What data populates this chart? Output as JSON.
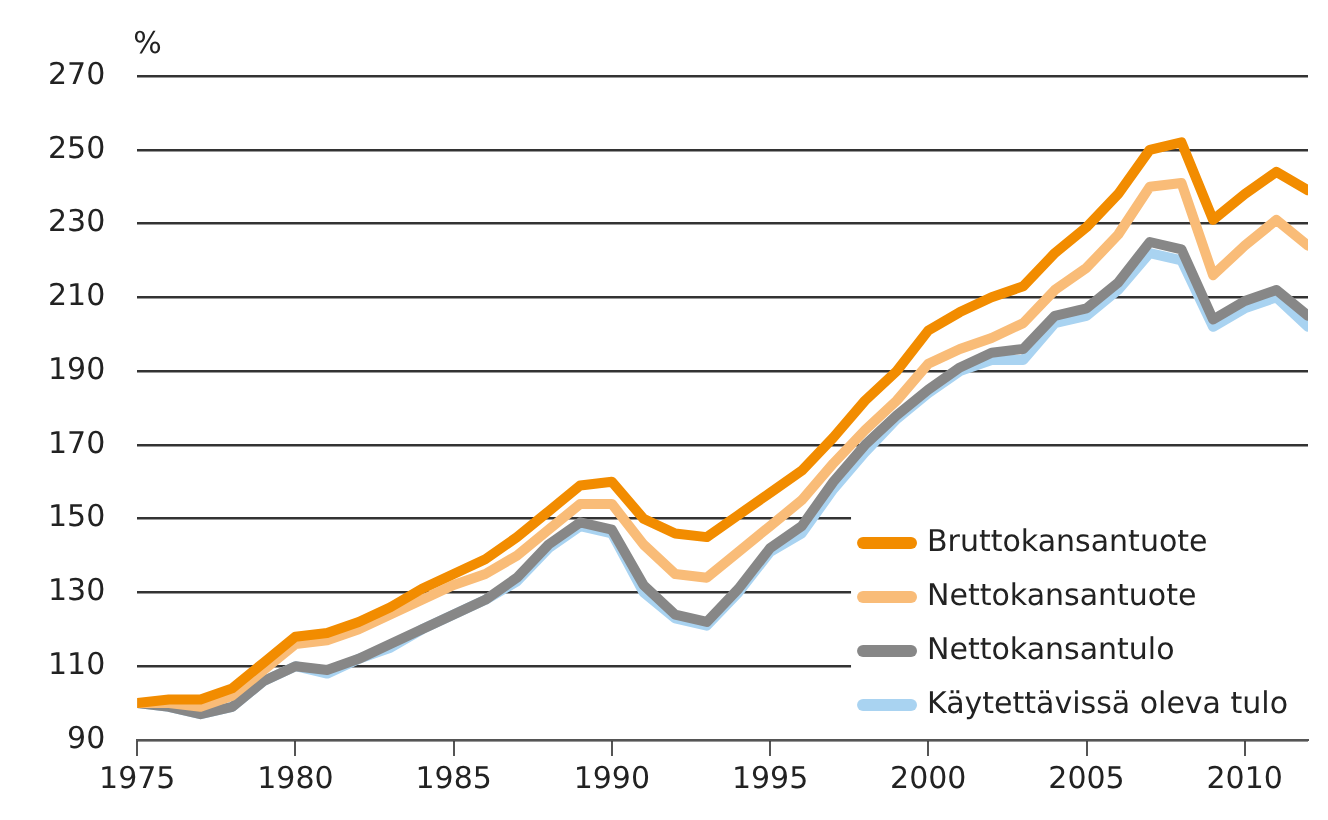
{
  "chart_data": {
    "type": "line",
    "ylabel": "%",
    "x": [
      1975,
      1976,
      1977,
      1978,
      1979,
      1980,
      1981,
      1982,
      1983,
      1984,
      1985,
      1986,
      1987,
      1988,
      1989,
      1990,
      1991,
      1992,
      1993,
      1994,
      1995,
      1996,
      1997,
      1998,
      1999,
      2000,
      2001,
      2002,
      2003,
      2004,
      2005,
      2006,
      2007,
      2008,
      2009,
      2010,
      2011,
      2012
    ],
    "series": [
      {
        "name": "Bruttokansantuote",
        "color": "#f28c00",
        "values": [
          100,
          101,
          101,
          104,
          111,
          118,
          119,
          122,
          126,
          131,
          135,
          139,
          145,
          152,
          159,
          160,
          150,
          146,
          145,
          151,
          157,
          163,
          172,
          182,
          190,
          201,
          206,
          210,
          213,
          222,
          229,
          238,
          250,
          252,
          231,
          238,
          244,
          239
        ]
      },
      {
        "name": "Nettokansantuote",
        "color": "#f9bc78",
        "values": [
          100,
          100,
          99,
          102,
          109,
          116,
          117,
          120,
          124,
          128,
          132,
          135,
          140,
          147,
          154,
          154,
          143,
          135,
          134,
          141,
          148,
          155,
          165,
          174,
          182,
          192,
          196,
          199,
          203,
          212,
          218,
          227,
          240,
          241,
          216,
          224,
          231,
          224
        ]
      },
      {
        "name": "Nettokansantulo",
        "color": "#878787",
        "values": [
          100,
          99,
          97,
          99,
          106,
          110,
          109,
          112,
          116,
          120,
          124,
          128,
          134,
          143,
          149,
          147,
          132,
          124,
          122,
          131,
          142,
          148,
          160,
          170,
          178,
          185,
          191,
          195,
          196,
          205,
          207,
          214,
          225,
          223,
          204,
          209,
          212,
          205
        ]
      },
      {
        "name": "Käytettävissä oleva tulo",
        "color": "#a9d3f1",
        "values": [
          100,
          99,
          97,
          99,
          106,
          110,
          108,
          112,
          115,
          120,
          124,
          128,
          133,
          142,
          148,
          146,
          130,
          123,
          121,
          130,
          141,
          146,
          158,
          168,
          177,
          184,
          190,
          193,
          193,
          203,
          205,
          212,
          222,
          220,
          202,
          207,
          210,
          202
        ]
      }
    ],
    "xlim": [
      1975,
      2012
    ],
    "xticks": [
      1975,
      1980,
      1985,
      1990,
      1995,
      2000,
      2005,
      2010
    ],
    "ylim": [
      90,
      270
    ],
    "yticks": [
      90,
      110,
      130,
      150,
      170,
      190,
      210,
      230,
      250,
      270
    ],
    "grid": "y",
    "legend": "bottom right",
    "marker": "none",
    "line_style": "solid"
  }
}
